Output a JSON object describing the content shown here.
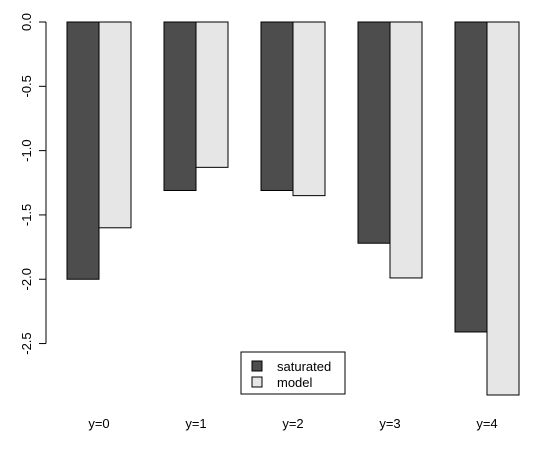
{
  "chart_data": {
    "type": "bar",
    "title": "",
    "xlabel": "",
    "ylabel": "",
    "categories": [
      "y=0",
      "y=1",
      "y=2",
      "y=3",
      "y=4"
    ],
    "series": [
      {
        "name": "saturated",
        "color": "#4d4d4d",
        "values": [
          -2.0,
          -1.31,
          -1.31,
          -1.72,
          -2.41
        ]
      },
      {
        "name": "model",
        "color": "#e6e6e6",
        "values": [
          -1.6,
          -1.13,
          -1.35,
          -1.99,
          -2.9
        ]
      }
    ],
    "ylim": [
      -2.9,
      0.0
    ],
    "yticks": [
      {
        "value": 0.0,
        "label": "0.0"
      },
      {
        "value": -0.5,
        "label": "-0.5"
      },
      {
        "value": -1.0,
        "label": "-1.0"
      },
      {
        "value": -1.5,
        "label": "-1.5"
      },
      {
        "value": -2.0,
        "label": "-2.0"
      },
      {
        "value": -2.5,
        "label": "-2.5"
      }
    ],
    "legend": {
      "position": "bottom-center",
      "entries": [
        "saturated",
        "model"
      ]
    },
    "grid": false
  }
}
